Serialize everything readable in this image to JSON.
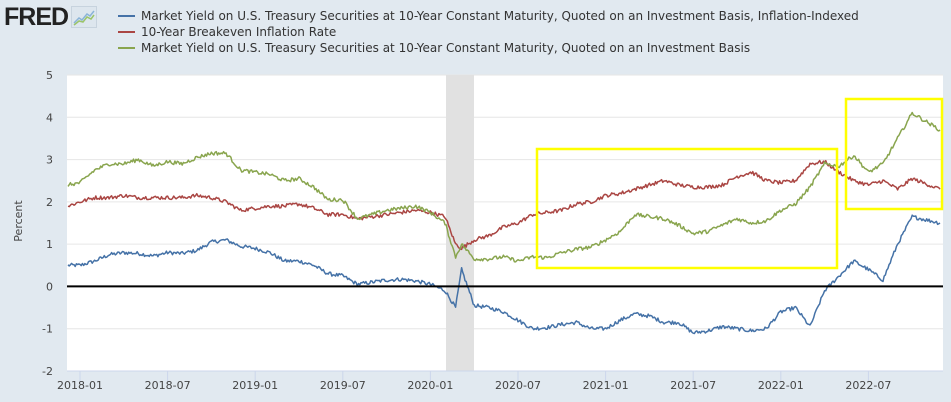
{
  "header": {
    "logo_text": "FRED",
    "logo_icon": "line-chart-icon"
  },
  "chart_data": {
    "type": "line",
    "title": "",
    "xlabel": "",
    "ylabel": "Percent",
    "ylim": [
      -2,
      5
    ],
    "yticks": [
      "-2",
      "-1",
      "0",
      "1",
      "2",
      "3",
      "4",
      "5"
    ],
    "xticks": [
      "2018-01",
      "2018-07",
      "2019-01",
      "2019-07",
      "2020-01",
      "2020-07",
      "2021-01",
      "2021-07",
      "2022-01",
      "2022-07"
    ],
    "xrange": [
      "2017-12",
      "2022-12"
    ],
    "grid": true,
    "zero_line": true,
    "legend_placement": "top",
    "recession_shading": {
      "start": "2020-02",
      "end": "2020-04"
    },
    "annotations": [
      {
        "type": "highlight-box",
        "color": "#ffff00",
        "from": "2020-09",
        "to": "2022-04",
        "ymin": 0.45,
        "ymax": 3.25
      },
      {
        "type": "highlight-box",
        "color": "#ffff00",
        "from": "2022-05",
        "to": "2022-11",
        "ymin": 1.8,
        "ymax": 4.4
      }
    ],
    "x": [
      "2017-12",
      "2018-01",
      "2018-02",
      "2018-03",
      "2018-04",
      "2018-05",
      "2018-06",
      "2018-07",
      "2018-08",
      "2018-09",
      "2018-10",
      "2018-11",
      "2018-12",
      "2019-01",
      "2019-02",
      "2019-03",
      "2019-04",
      "2019-05",
      "2019-06",
      "2019-07",
      "2019-08",
      "2019-09",
      "2019-10",
      "2019-11",
      "2019-12",
      "2020-01",
      "2020-02",
      "2020-03a",
      "2020-03b",
      "2020-04",
      "2020-05",
      "2020-06",
      "2020-07",
      "2020-08",
      "2020-09",
      "2020-10",
      "2020-11",
      "2020-12",
      "2021-01",
      "2021-02",
      "2021-03",
      "2021-04",
      "2021-05",
      "2021-06",
      "2021-07",
      "2021-08",
      "2021-09",
      "2021-10",
      "2021-11",
      "2021-12",
      "2022-01",
      "2022-02",
      "2022-03",
      "2022-04",
      "2022-05",
      "2022-06",
      "2022-07",
      "2022-08",
      "2022-09",
      "2022-10",
      "2022-11"
    ],
    "series": [
      {
        "name": "Market Yield on U.S. Treasury Securities at 10-Year Constant Maturity, Quoted on an Investment Basis, Inflation-Indexed",
        "color": "#4572a7",
        "values": [
          0.5,
          0.5,
          0.6,
          0.75,
          0.8,
          0.78,
          0.72,
          0.8,
          0.78,
          0.85,
          1.05,
          1.1,
          0.95,
          0.9,
          0.8,
          0.6,
          0.6,
          0.5,
          0.3,
          0.25,
          0.05,
          0.1,
          0.15,
          0.17,
          0.13,
          0.05,
          -0.1,
          -0.5,
          0.4,
          -0.45,
          -0.5,
          -0.6,
          -0.8,
          -1.0,
          -0.97,
          -0.9,
          -0.85,
          -1.0,
          -1.0,
          -0.8,
          -0.65,
          -0.7,
          -0.85,
          -0.85,
          -1.1,
          -1.05,
          -0.95,
          -1.0,
          -1.05,
          -1.0,
          -0.6,
          -0.5,
          -0.95,
          -0.1,
          0.25,
          0.6,
          0.4,
          0.15,
          1.0,
          1.65,
          1.5
        ]
      },
      {
        "name": "10-Year Breakeven Inflation Rate",
        "color": "#aa4643",
        "values": [
          1.9,
          2.0,
          2.1,
          2.1,
          2.15,
          2.1,
          2.1,
          2.1,
          2.1,
          2.15,
          2.1,
          2.0,
          1.8,
          1.85,
          1.9,
          1.9,
          1.95,
          1.85,
          1.7,
          1.7,
          1.6,
          1.65,
          1.7,
          1.75,
          1.8,
          1.75,
          1.65,
          1.0,
          0.9,
          1.1,
          1.2,
          1.4,
          1.5,
          1.7,
          1.75,
          1.8,
          1.95,
          2.0,
          2.15,
          2.2,
          2.3,
          2.4,
          2.5,
          2.4,
          2.35,
          2.35,
          2.4,
          2.6,
          2.7,
          2.5,
          2.45,
          2.5,
          2.9,
          2.95,
          2.7,
          2.5,
          2.4,
          2.5,
          2.3,
          2.55,
          2.3
        ]
      },
      {
        "name": "Market Yield on U.S. Treasury Securities at 10-Year Constant Maturity, Quoted on an Investment Basis",
        "color": "#89a54e",
        "values": [
          2.4,
          2.45,
          2.75,
          2.9,
          2.9,
          3.0,
          2.85,
          2.95,
          2.9,
          3.05,
          3.15,
          3.15,
          2.75,
          2.7,
          2.65,
          2.5,
          2.55,
          2.35,
          2.05,
          2.05,
          1.6,
          1.7,
          1.8,
          1.85,
          1.9,
          1.75,
          1.5,
          0.7,
          1.0,
          0.65,
          0.65,
          0.7,
          0.6,
          0.7,
          0.68,
          0.8,
          0.88,
          0.93,
          1.1,
          1.3,
          1.7,
          1.65,
          1.6,
          1.45,
          1.25,
          1.3,
          1.45,
          1.6,
          1.5,
          1.55,
          1.8,
          1.95,
          2.35,
          2.9,
          2.85,
          3.1,
          2.7,
          2.9,
          3.5,
          4.1,
          3.7
        ]
      }
    ]
  }
}
